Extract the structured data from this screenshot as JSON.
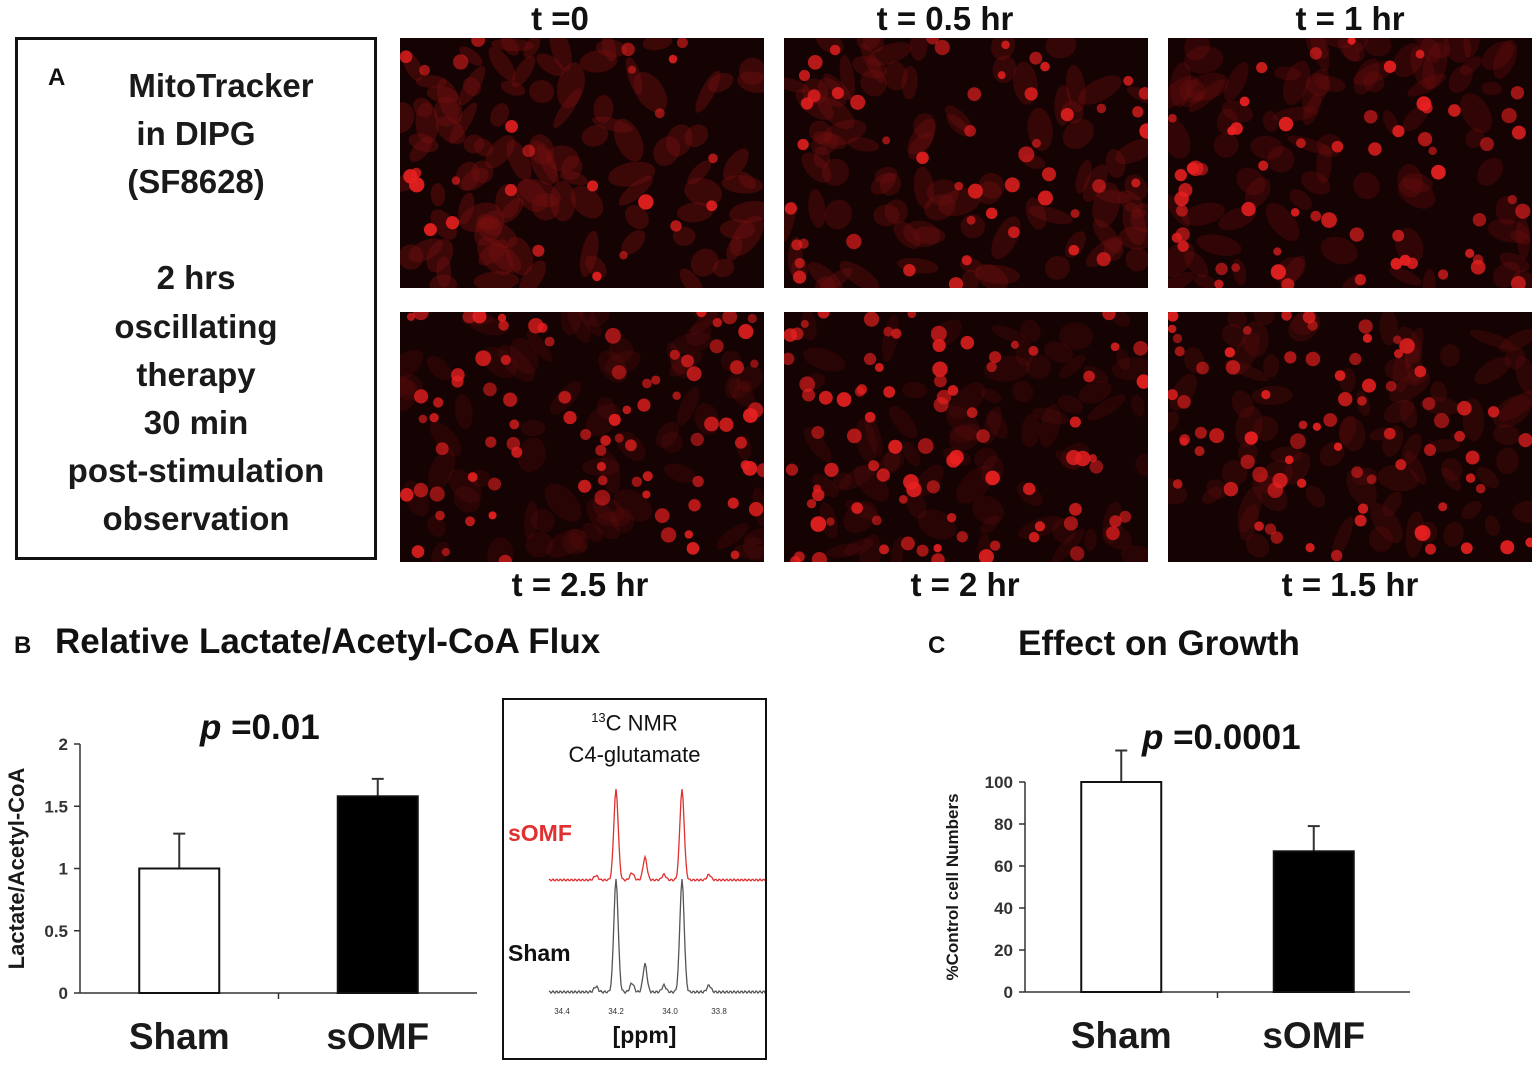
{
  "panel_a": {
    "letter": "A",
    "description": [
      "MitoTracker",
      "in DIPG",
      "(SF8628)",
      "",
      "2 hrs",
      "oscillating",
      "therapy",
      "30 min",
      "post-stimulation",
      "observation"
    ],
    "images": [
      {
        "label": "t =0",
        "density": 0.15
      },
      {
        "label": "t = 0.5 hr",
        "density": 0.45
      },
      {
        "label": "t = 1 hr",
        "density": 0.6
      },
      {
        "label": "t = 2.5 hr",
        "density": 0.95
      },
      {
        "label": "t = 2 hr",
        "density": 0.95
      },
      {
        "label": "t = 1.5 hr",
        "density": 0.8
      }
    ]
  },
  "panel_b": {
    "letter": "B",
    "title": "Relative Lactate/Acetyl-CoA Flux",
    "p_prefix": "p",
    "p_value": " =0.01",
    "nmr": {
      "title_sup": "13",
      "title_main": "C NMR",
      "subtitle": "C4-glutamate",
      "somf_label": "sOMF",
      "sham_label": "Sham",
      "ticks": [
        "34.4",
        "34.2",
        "34.0",
        "33.8"
      ],
      "xlabel": "[ppm]",
      "somf_color": "#e03030",
      "sham_color": "#555555"
    }
  },
  "panel_c": {
    "letter": "C",
    "title": "Effect on Growth",
    "p_prefix": "p",
    "p_value": " =0.0001"
  },
  "chart_data": [
    {
      "type": "bar",
      "categories": [
        "Sham",
        "sOMF"
      ],
      "values": [
        1.0,
        1.58
      ],
      "errors": [
        0.28,
        0.14
      ],
      "colors": [
        "#ffffff",
        "#000000"
      ],
      "ylabel": "Lactate/Acetyl-CoA",
      "ylim": [
        0,
        2
      ],
      "yticks": [
        "0",
        "0.5",
        "1",
        "1.5",
        "2"
      ]
    },
    {
      "type": "bar",
      "categories": [
        "Sham",
        "sOMF"
      ],
      "values": [
        100,
        67
      ],
      "errors": [
        15,
        12
      ],
      "colors": [
        "#ffffff",
        "#000000"
      ],
      "ylabel": "%Control cell Numbers",
      "ylim": [
        0,
        100
      ],
      "yticks": [
        "0",
        "20",
        "40",
        "60",
        "80",
        "100"
      ]
    }
  ]
}
